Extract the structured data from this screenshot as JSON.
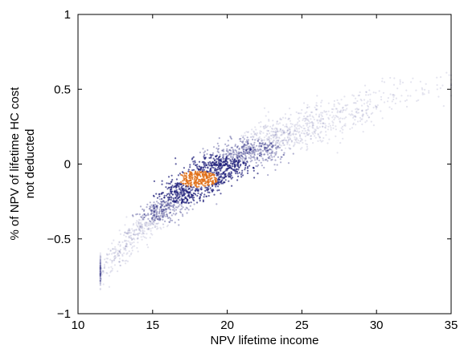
{
  "chart_data": {
    "type": "heatmap",
    "title": "",
    "xlabel": "NPV lifetime income",
    "ylabel_lines": [
      "% of NPV of lifetime HC cost",
      "not deducted"
    ],
    "xlim": [
      10,
      35
    ],
    "ylim": [
      -1,
      1
    ],
    "xticks": [
      10,
      15,
      20,
      25,
      30,
      35
    ],
    "yticks": [
      -1,
      -0.5,
      0,
      0.5,
      1
    ],
    "xtick_labels": [
      "10",
      "15",
      "20",
      "25",
      "30",
      "35"
    ],
    "ytick_labels": [
      "−1",
      "−0.5",
      "0",
      "0.5",
      "1"
    ],
    "grid": false,
    "density_ridge": {
      "x": [
        11.5,
        13,
        15,
        17,
        19,
        21,
        23,
        25,
        27,
        29,
        31,
        33,
        35
      ],
      "y": [
        -0.72,
        -0.55,
        -0.34,
        -0.18,
        -0.05,
        0.06,
        0.15,
        0.23,
        0.3,
        0.37,
        0.43,
        0.49,
        0.55
      ],
      "spread": [
        0.05,
        0.05,
        0.06,
        0.07,
        0.07,
        0.07,
        0.07,
        0.07,
        0.07,
        0.07,
        0.06,
        0.05,
        0.05
      ]
    },
    "density_peak": {
      "x": 18,
      "y": -0.1
    },
    "colors": {
      "low": "#dcdcf2",
      "mid": "#20207a",
      "high": "#e07018",
      "axis": "#000000"
    }
  }
}
